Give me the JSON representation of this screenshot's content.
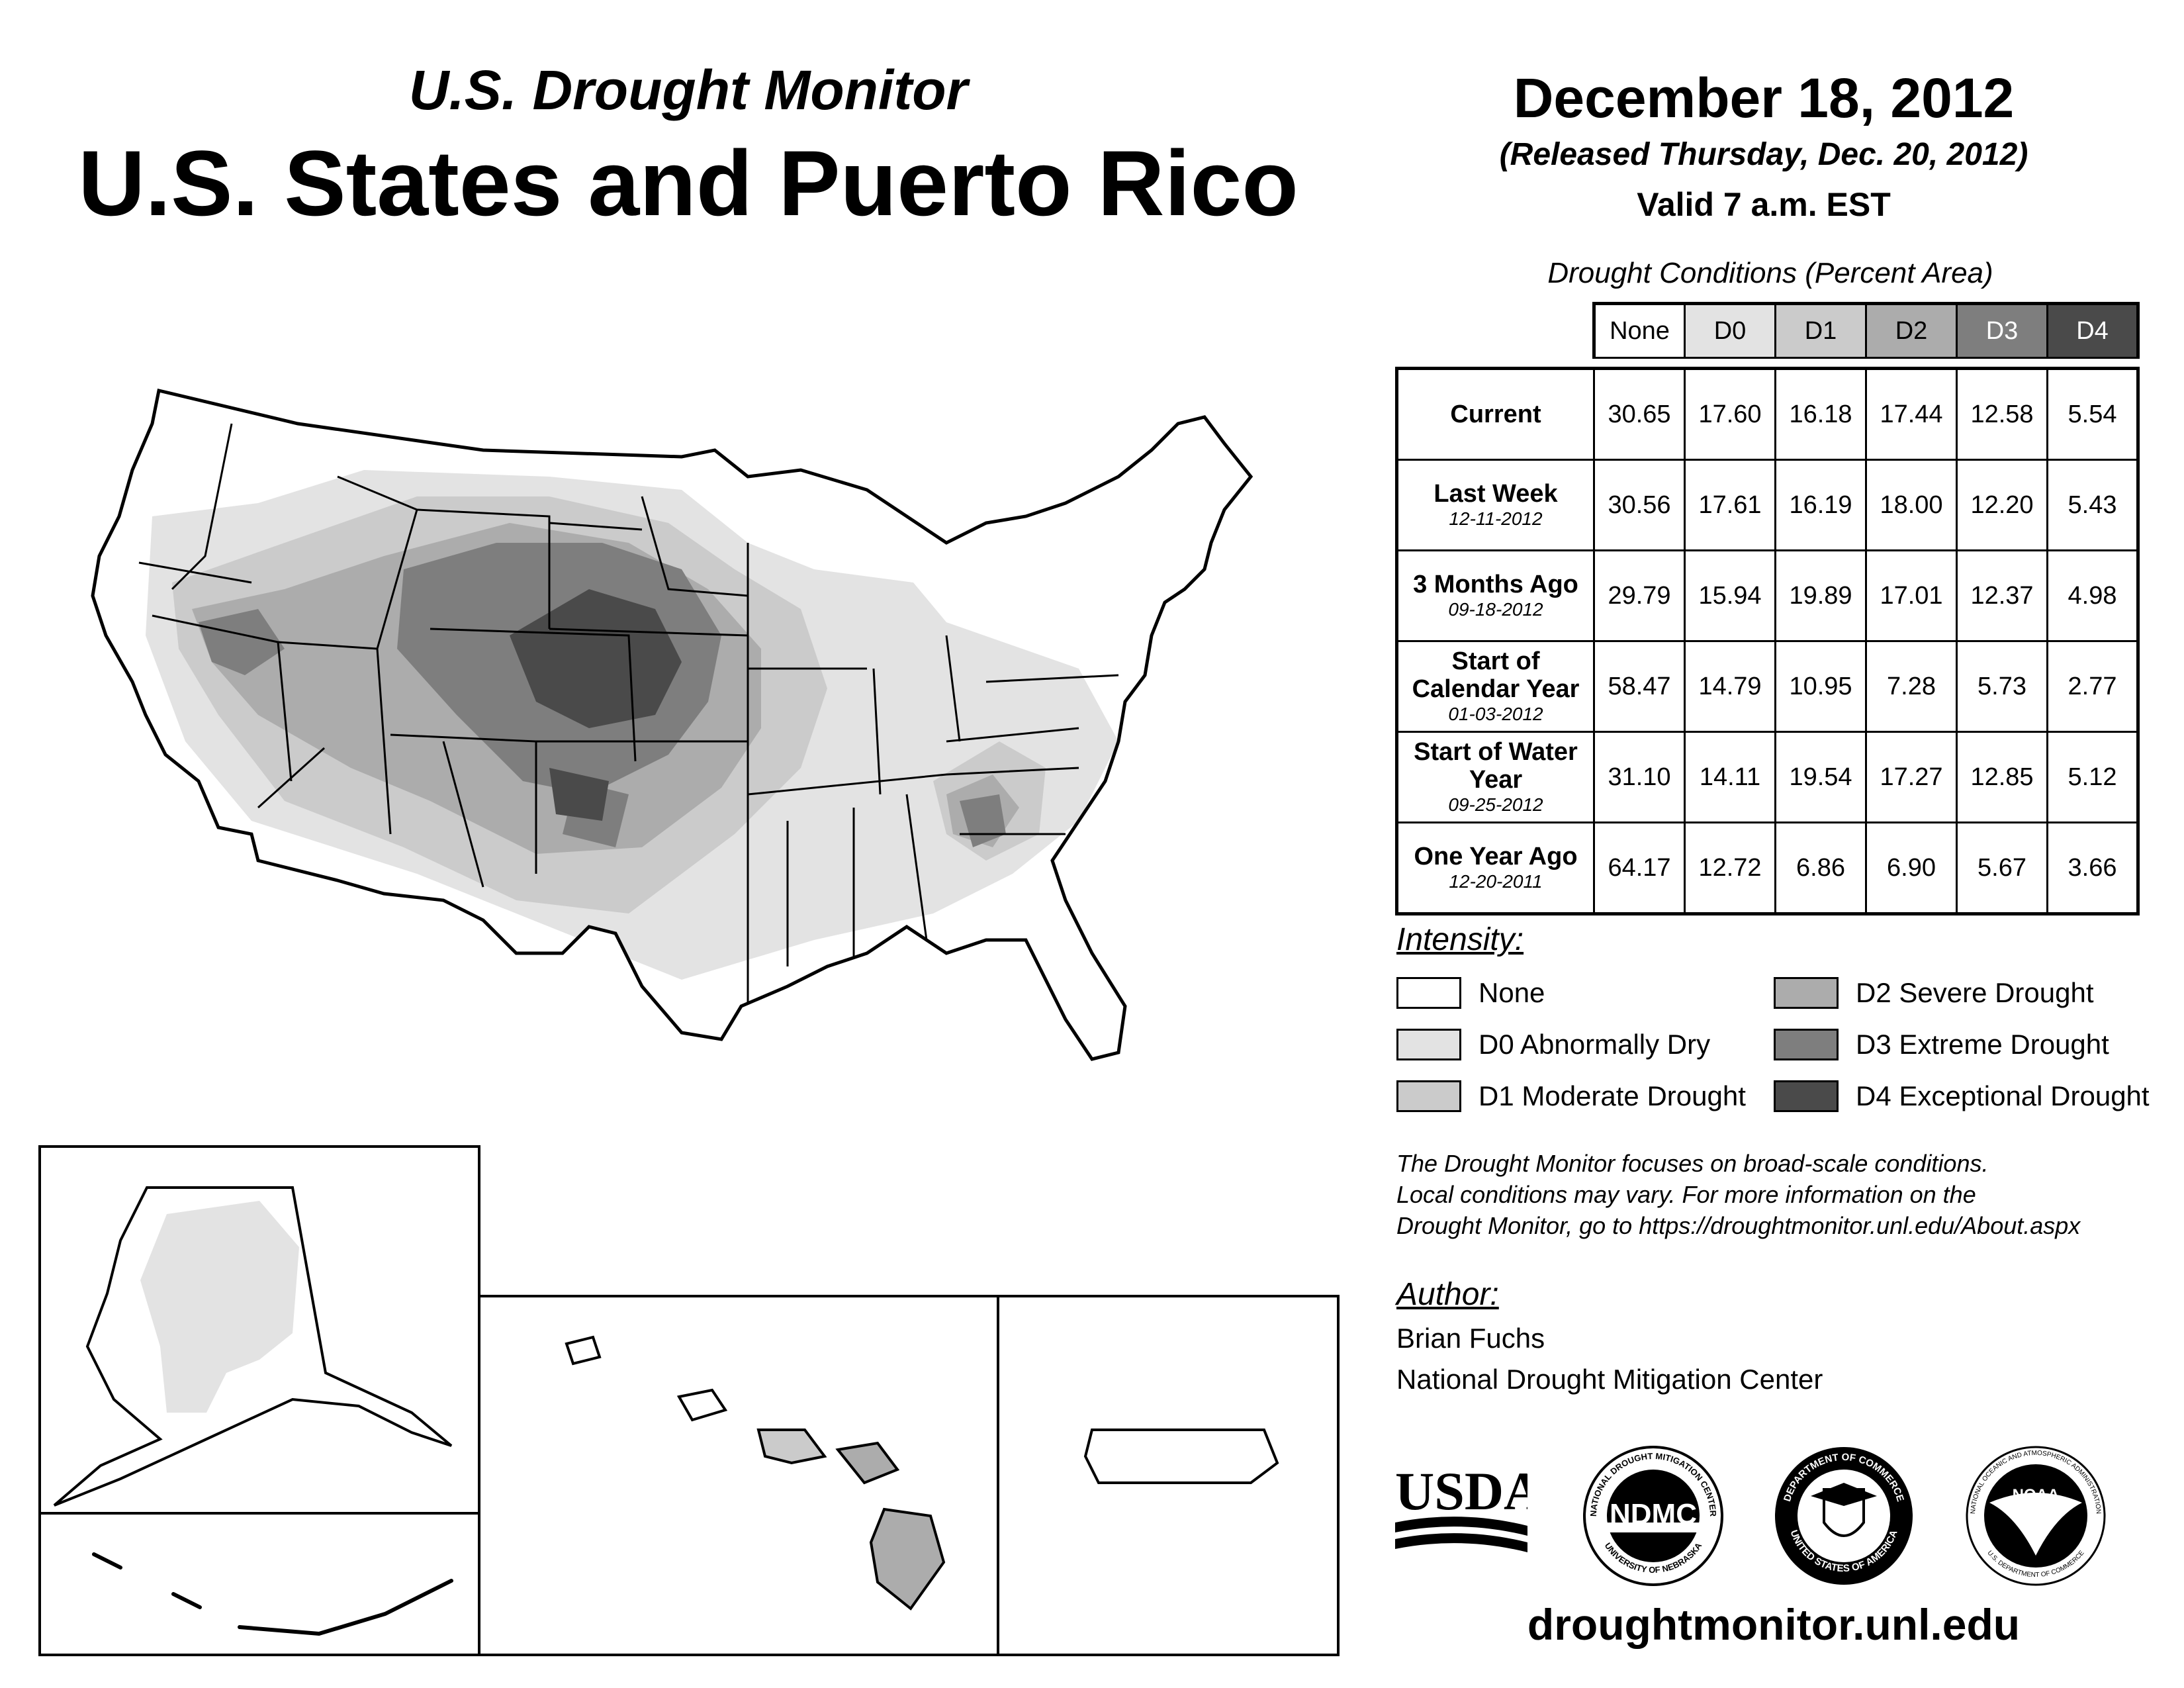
{
  "header": {
    "subtitle": "U.S. Drought Monitor",
    "title": "U.S. States and Puerto Rico",
    "date": "December 18, 2012",
    "released": "(Released Thursday, Dec. 20, 2012)",
    "valid": "Valid 7 a.m. EST"
  },
  "stats": {
    "caption": "Drought Conditions (Percent Area)",
    "columns": [
      "None",
      "D0",
      "D1",
      "D2",
      "D3",
      "D4"
    ],
    "rows": [
      {
        "label": "Current",
        "date": "",
        "values": [
          "30.65",
          "17.60",
          "16.18",
          "17.44",
          "12.58",
          "5.54"
        ]
      },
      {
        "label": "Last Week",
        "date": "12-11-2012",
        "values": [
          "30.56",
          "17.61",
          "16.19",
          "18.00",
          "12.20",
          "5.43"
        ]
      },
      {
        "label": "3 Months Ago",
        "date": "09-18-2012",
        "values": [
          "29.79",
          "15.94",
          "19.89",
          "17.01",
          "12.37",
          "4.98"
        ]
      },
      {
        "label": "Start of Calendar Year",
        "date": "01-03-2012",
        "values": [
          "58.47",
          "14.79",
          "10.95",
          "7.28",
          "5.73",
          "2.77"
        ]
      },
      {
        "label": "Start of Water Year",
        "date": "09-25-2012",
        "values": [
          "31.10",
          "14.11",
          "19.54",
          "17.27",
          "12.85",
          "5.12"
        ]
      },
      {
        "label": "One Year Ago",
        "date": "12-20-2011",
        "values": [
          "64.17",
          "12.72",
          "6.86",
          "6.90",
          "5.67",
          "3.66"
        ]
      }
    ]
  },
  "legend": {
    "heading": "Intensity:",
    "items": [
      {
        "label": "None",
        "color": "#ffffff"
      },
      {
        "label": "D0 Abnormally Dry",
        "color": "#e3e3e3"
      },
      {
        "label": "D1 Moderate Drought",
        "color": "#cbcbcb"
      },
      {
        "label": "D2 Severe Drought",
        "color": "#acacac"
      },
      {
        "label": "D3 Extreme Drought",
        "color": "#7e7e7e"
      },
      {
        "label": "D4 Exceptional Drought",
        "color": "#4a4a4a"
      }
    ]
  },
  "note": {
    "line1": "The Drought Monitor focuses on broad-scale conditions.",
    "line2": "Local conditions may vary. For more information on the",
    "line3": "Drought Monitor, go to https://droughtmonitor.unl.edu/About.aspx"
  },
  "author": {
    "heading": "Author:",
    "name": "Brian Fuchs",
    "org": "National Drought Mitigation Center"
  },
  "logos": {
    "usda": "USDA",
    "ndmc": "NDMC",
    "ndmc_ring_top": "NATIONAL DROUGHT MITIGATION CENTER",
    "ndmc_ring_bottom": "UNIVERSITY OF NEBRASKA",
    "doc_ring_top": "DEPARTMENT OF COMMERCE",
    "doc_ring_bottom": "UNITED STATES OF AMERICA",
    "noaa": "NOAA",
    "noaa_ring_top": "NATIONAL OCEANIC AND ATMOSPHERIC ADMINISTRATION",
    "noaa_ring_bottom": "U.S. DEPARTMENT OF COMMERCE"
  },
  "website": "droughtmonitor.unl.edu",
  "colors": {
    "none": "#ffffff",
    "d0": "#e3e3e3",
    "d1": "#cbcbcb",
    "d2": "#acacac",
    "d3": "#7e7e7e",
    "d4": "#4a4a4a"
  }
}
